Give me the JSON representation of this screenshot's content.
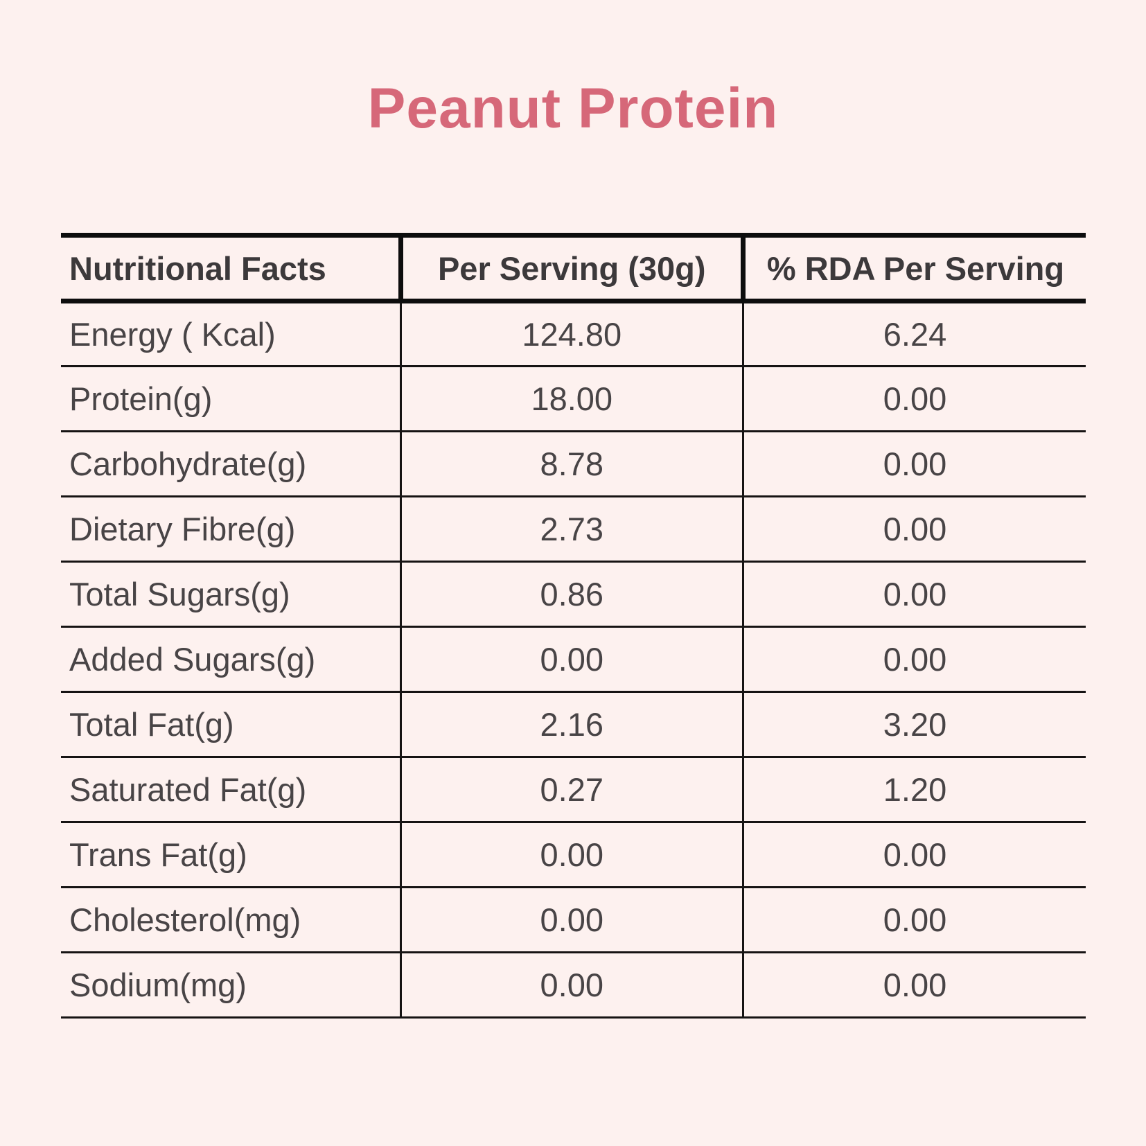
{
  "page": {
    "background_color": "#fdf1ef",
    "line_color": "#111111"
  },
  "title": {
    "text": "Peanut Protein",
    "color": "#d66879"
  },
  "table": {
    "headers": [
      "Nutritional Facts",
      "Per Serving (30g)",
      "% RDA Per Serving"
    ],
    "rows": [
      {
        "label": "Energy ( Kcal)",
        "per_serving": "124.80",
        "rda": "6.24"
      },
      {
        "label": "Protein(g)",
        "per_serving": "18.00",
        "rda": "0.00"
      },
      {
        "label": "Carbohydrate(g)",
        "per_serving": "8.78",
        "rda": "0.00"
      },
      {
        "label": "Dietary Fibre(g)",
        "per_serving": "2.73",
        "rda": "0.00"
      },
      {
        "label": "Total Sugars(g)",
        "per_serving": "0.86",
        "rda": "0.00"
      },
      {
        "label": "Added Sugars(g)",
        "per_serving": "0.00",
        "rda": "0.00"
      },
      {
        "label": "Total Fat(g)",
        "per_serving": "2.16",
        "rda": "3.20"
      },
      {
        "label": "Saturated Fat(g)",
        "per_serving": "0.27",
        "rda": "1.20"
      },
      {
        "label": "Trans Fat(g)",
        "per_serving": "0.00",
        "rda": "0.00"
      },
      {
        "label": "Cholesterol(mg)",
        "per_serving": "0.00",
        "rda": "0.00"
      },
      {
        "label": "Sodium(mg)",
        "per_serving": "0.00",
        "rda": "0.00"
      }
    ]
  }
}
